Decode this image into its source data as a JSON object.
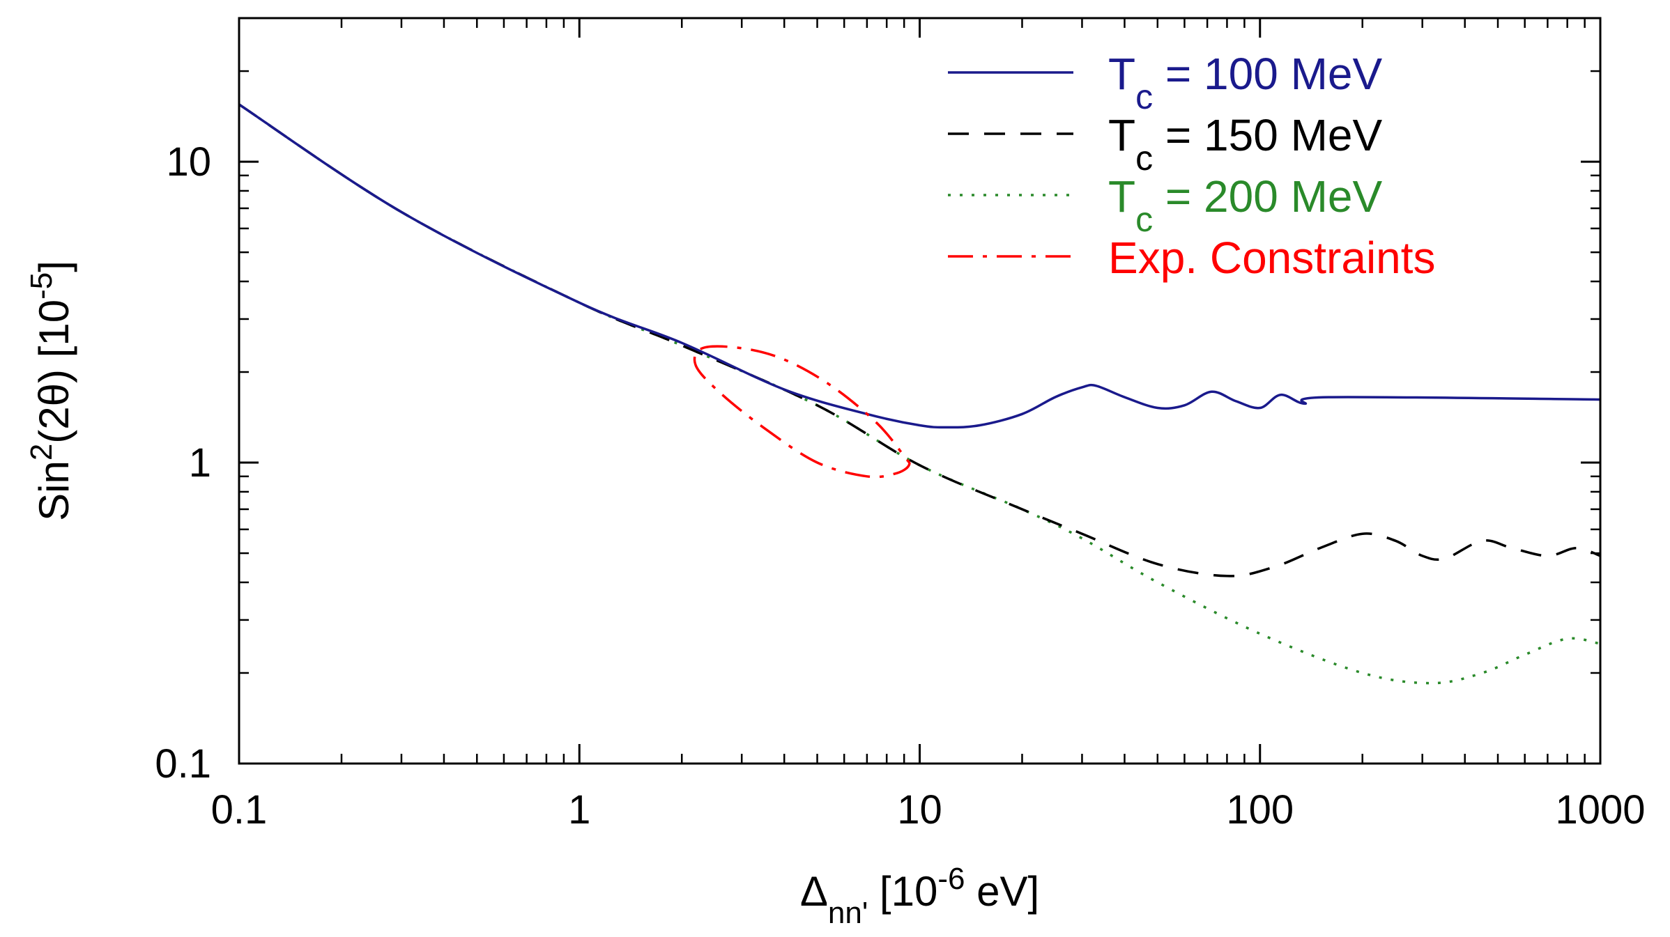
{
  "chart_data": {
    "type": "line",
    "x_scale": "log",
    "y_scale": "log",
    "xlim": [
      0.1,
      1000
    ],
    "ylim": [
      0.1,
      30
    ],
    "xlabel": {
      "base": "Δ",
      "sub": "nn'",
      "rest_pre": " [10",
      "sup": "-6",
      "rest_post": " eV]"
    },
    "ylabel": {
      "pre": "Sin",
      "sup1": "2",
      "mid": "(2θ) [10",
      "sup2": "-5",
      "post": "]"
    },
    "x_ticks": [
      {
        "value": 0.1,
        "label": "0.1"
      },
      {
        "value": 1,
        "label": "1"
      },
      {
        "value": 10,
        "label": "10"
      },
      {
        "value": 100,
        "label": "100"
      },
      {
        "value": 1000,
        "label": "1000"
      }
    ],
    "y_ticks": [
      {
        "value": 0.1,
        "label": "0.1"
      },
      {
        "value": 1,
        "label": "1"
      },
      {
        "value": 10,
        "label": "10"
      }
    ],
    "grid": false,
    "legend_position": "top-right",
    "series": [
      {
        "name": "Tc = 100 MeV",
        "legend": {
          "pre": "T",
          "sub": "c",
          "post": " = 100 MeV"
        },
        "color": "#1a1a8c",
        "style": "solid",
        "points": [
          [
            0.1,
            15.5
          ],
          [
            0.3,
            6.8
          ],
          [
            1,
            3.4
          ],
          [
            2,
            2.5
          ],
          [
            4,
            1.75
          ],
          [
            7,
            1.45
          ],
          [
            10,
            1.33
          ],
          [
            12,
            1.31
          ],
          [
            15,
            1.33
          ],
          [
            20,
            1.45
          ],
          [
            25,
            1.65
          ],
          [
            30,
            1.78
          ],
          [
            33,
            1.8
          ],
          [
            40,
            1.65
          ],
          [
            50,
            1.52
          ],
          [
            60,
            1.55
          ],
          [
            72,
            1.72
          ],
          [
            85,
            1.6
          ],
          [
            100,
            1.52
          ],
          [
            115,
            1.68
          ],
          [
            135,
            1.57
          ],
          [
            160,
            1.65
          ],
          [
            1000,
            1.62
          ]
        ]
      },
      {
        "name": "Tc = 150 MeV",
        "legend": {
          "pre": "T",
          "sub": "c",
          "post": " = 150 MeV"
        },
        "color": "#000000",
        "style": "dashed",
        "points": [
          [
            0.1,
            15.5
          ],
          [
            0.3,
            6.8
          ],
          [
            1,
            3.4
          ],
          [
            2,
            2.45
          ],
          [
            5,
            1.55
          ],
          [
            10,
            0.98
          ],
          [
            20,
            0.7
          ],
          [
            30,
            0.58
          ],
          [
            50,
            0.46
          ],
          [
            80,
            0.42
          ],
          [
            110,
            0.45
          ],
          [
            150,
            0.52
          ],
          [
            200,
            0.58
          ],
          [
            250,
            0.55
          ],
          [
            300,
            0.49
          ],
          [
            350,
            0.48
          ],
          [
            450,
            0.55
          ],
          [
            550,
            0.52
          ],
          [
            700,
            0.49
          ],
          [
            850,
            0.52
          ],
          [
            1000,
            0.49
          ]
        ]
      },
      {
        "name": "Tc = 200 MeV",
        "legend": {
          "pre": "T",
          "sub": "c",
          "post": " = 200 MeV"
        },
        "color": "#2a8a2a",
        "style": "dotted",
        "points": [
          [
            0.1,
            15.5
          ],
          [
            0.3,
            6.8
          ],
          [
            1,
            3.4
          ],
          [
            2,
            2.45
          ],
          [
            5,
            1.55
          ],
          [
            10,
            0.98
          ],
          [
            20,
            0.7
          ],
          [
            30,
            0.56
          ],
          [
            50,
            0.4
          ],
          [
            100,
            0.27
          ],
          [
            200,
            0.2
          ],
          [
            320,
            0.185
          ],
          [
            450,
            0.2
          ],
          [
            600,
            0.23
          ],
          [
            800,
            0.26
          ],
          [
            1000,
            0.25
          ]
        ]
      }
    ],
    "constraint": {
      "name": "Exp. Constraints",
      "legend": {
        "pre": "Exp. Constraints"
      },
      "color": "#ff0000",
      "style": "dash-dot",
      "points": [
        [
          2.3,
          2.4
        ],
        [
          3,
          2.4
        ],
        [
          4,
          2.2
        ],
        [
          5.5,
          1.8
        ],
        [
          7.5,
          1.35
        ],
        [
          9,
          1.05
        ],
        [
          9.3,
          0.98
        ],
        [
          8.5,
          0.92
        ],
        [
          7,
          0.9
        ],
        [
          5,
          1.0
        ],
        [
          3.5,
          1.3
        ],
        [
          2.6,
          1.7
        ],
        [
          2.2,
          2.1
        ],
        [
          2.3,
          2.4
        ]
      ]
    }
  }
}
